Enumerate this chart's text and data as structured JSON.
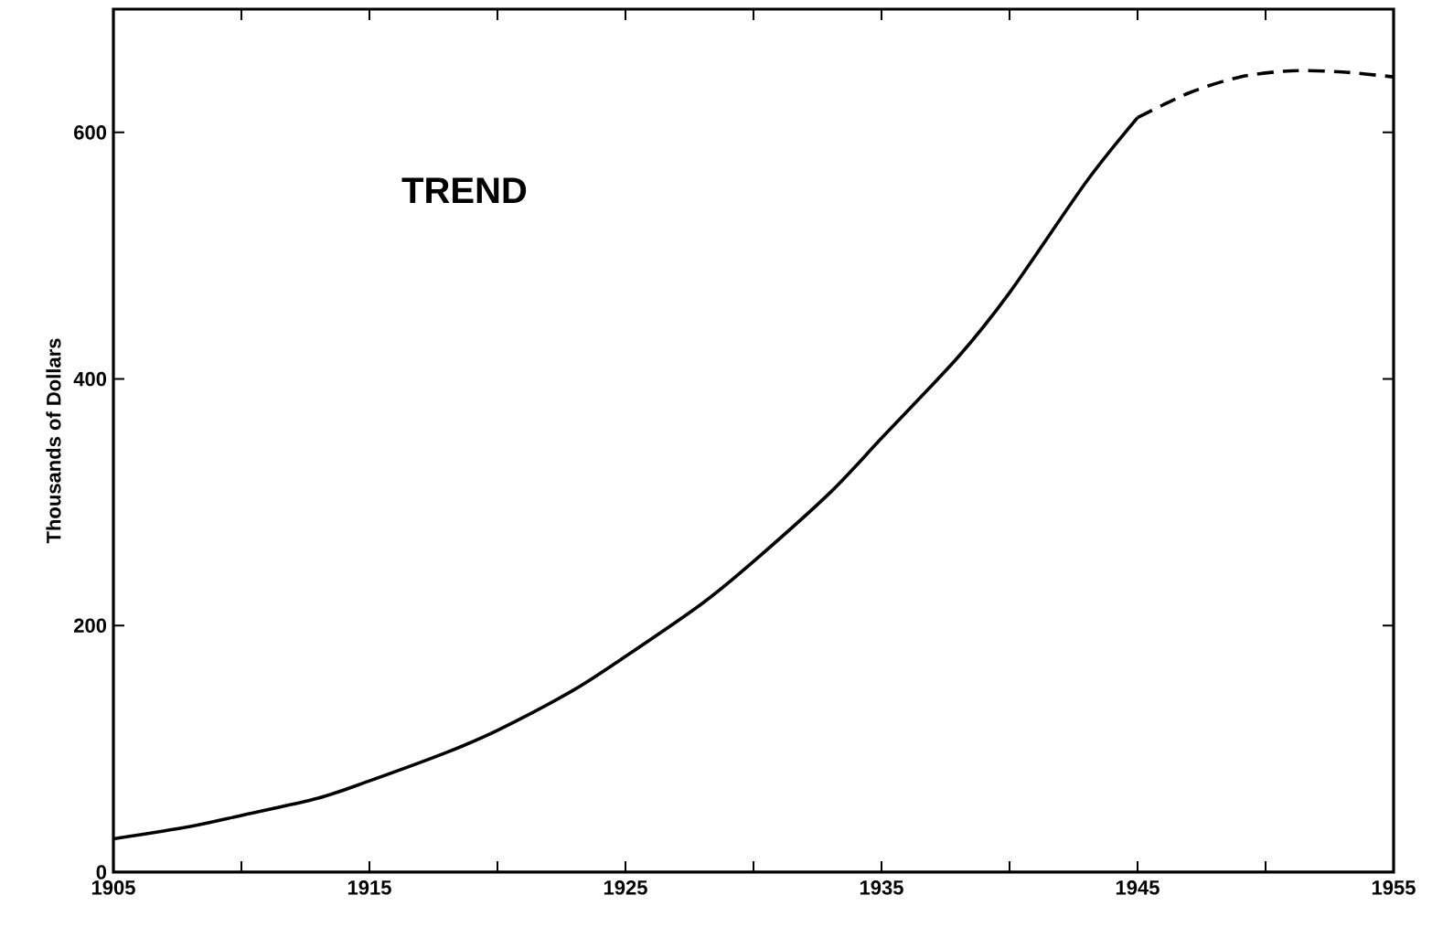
{
  "chart_data": {
    "type": "line",
    "ylabel": "Thousands of Dollars",
    "annotations": [
      "TREND"
    ],
    "xlim": [
      1905,
      1955
    ],
    "ylim": [
      0,
      700
    ],
    "xticks": [
      1905,
      {
        "value": 1910,
        "label": null
      },
      1915,
      {
        "value": 1920,
        "label": null
      },
      1925,
      {
        "value": 1930,
        "label": null
      },
      1935,
      {
        "value": 1940,
        "label": null
      },
      1945,
      {
        "value": 1950,
        "label": null
      },
      1955
    ],
    "yticks": [
      0,
      200,
      400,
      600
    ],
    "grid": false,
    "marker": "none",
    "series": [
      {
        "color": "#000000",
        "line_style": "solid",
        "x": [
          1905,
          1908,
          1910,
          1913,
          1915,
          1918,
          1920,
          1923,
          1925,
          1928,
          1930,
          1933,
          1935,
          1938,
          1940,
          1943,
          1945
        ],
        "values": [
          27,
          37,
          46,
          60,
          74,
          97,
          115,
          148,
          175,
          218,
          252,
          308,
          352,
          418,
          470,
          560,
          612
        ]
      },
      {
        "color": "#000000",
        "line_style": "dashed",
        "x": [
          1945,
          1947,
          1949,
          1951,
          1953,
          1955
        ],
        "values": [
          612,
          632,
          645,
          650,
          649,
          645
        ]
      }
    ]
  }
}
